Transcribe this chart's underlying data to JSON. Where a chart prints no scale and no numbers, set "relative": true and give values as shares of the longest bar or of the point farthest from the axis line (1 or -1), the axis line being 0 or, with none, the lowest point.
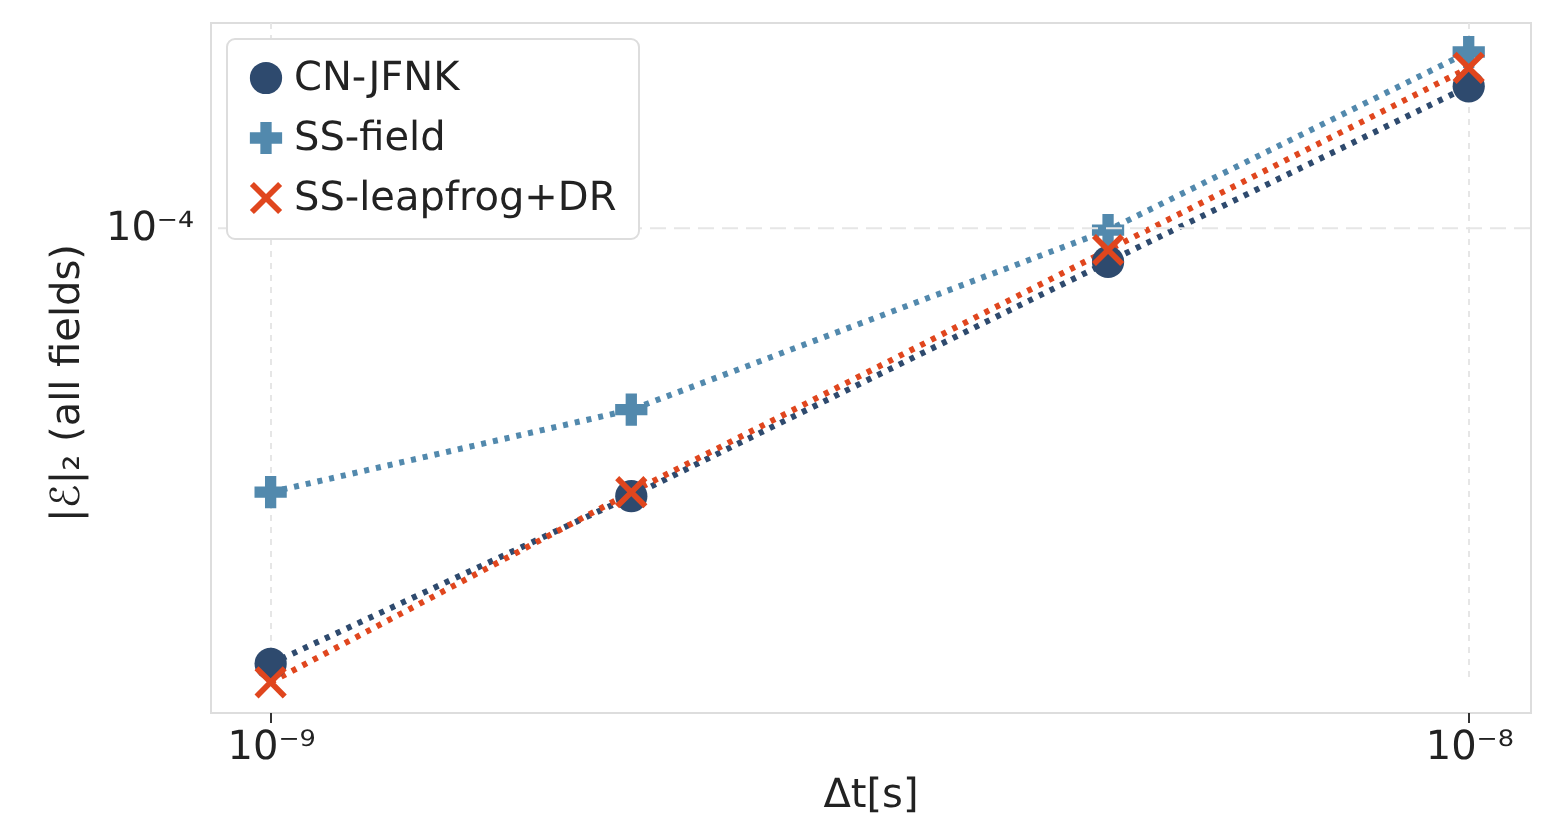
{
  "chart_data": {
    "type": "line",
    "relative": true,
    "log": "x",
    "xlabel": "Δt[s]",
    "ylabel": "|ℰ|₂ (all fields)",
    "x": [
      1e-09,
      2e-09,
      5e-09,
      1e-08
    ],
    "xlim": [
      8.9e-10,
      1.125e-08
    ],
    "xticks": [
      {
        "value": 1e-09,
        "label": "10⁻⁹"
      },
      {
        "value": 1e-08,
        "label": "10⁻⁸"
      }
    ],
    "grid": "x",
    "legend": "top left",
    "line_style": "dotted",
    "ref_lines": [
      {
        "axis": "y",
        "value": 0.733,
        "label": "10⁻⁴",
        "color": "#e6e6e6",
        "line_style": "dashed"
      }
    ],
    "series": [
      {
        "name": "CN-JFNK",
        "color": "#2e4a6e",
        "marker": "circle",
        "values": [
          0.073,
          0.327,
          0.682,
          0.948
        ]
      },
      {
        "name": "SS-field",
        "color": "#5289ad",
        "marker": "plus",
        "values": [
          0.333,
          0.458,
          0.73,
          1
        ]
      },
      {
        "name": "SS-leapfrog+DR",
        "color": "#e0461e",
        "marker": "cross",
        "values": [
          0.045,
          0.333,
          0.7,
          0.976
        ]
      }
    ]
  }
}
